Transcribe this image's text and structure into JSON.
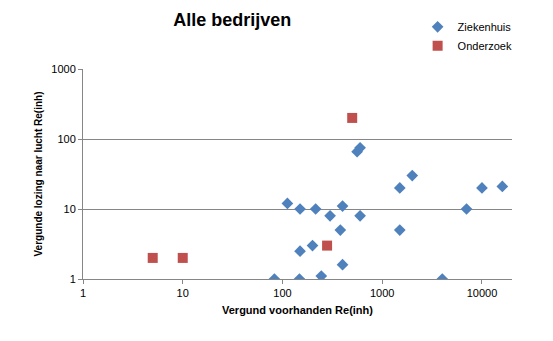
{
  "chart_data": {
    "type": "scatter",
    "title": "Alle bedrijven",
    "x_label": "Vergund voorhanden Re(inh)",
    "y_label": "Vergunde lozing naar lucht Re(inh)",
    "log": true,
    "grid": true,
    "legend": "top right",
    "xlim": [
      1,
      20000
    ],
    "ylim": [
      1,
      1000
    ],
    "xticks": [
      1,
      10,
      100,
      1000,
      10000
    ],
    "yticks": [
      1,
      10,
      100,
      1000
    ],
    "series": [
      {
        "name": "Ziekenhuis",
        "color": "#4f81bd",
        "marker": "diamond",
        "x": [
          83,
          148,
          112,
          150,
          150,
          200,
          215,
          245,
          300,
          400,
          380,
          400,
          560,
          600,
          600,
          1500,
          2000,
          1500,
          4000,
          7000,
          10000,
          16000
        ],
        "values": [
          1,
          1,
          12,
          10,
          2.5,
          3,
          10,
          1.1,
          8,
          11,
          5,
          1.6,
          66,
          75,
          8,
          20,
          30,
          5,
          1,
          10,
          20,
          21
        ]
      },
      {
        "name": "Onderzoek",
        "color": "#c0504d",
        "marker": "square",
        "x": [
          5,
          10,
          280,
          500
        ],
        "values": [
          2,
          2,
          3,
          200
        ]
      }
    ]
  }
}
